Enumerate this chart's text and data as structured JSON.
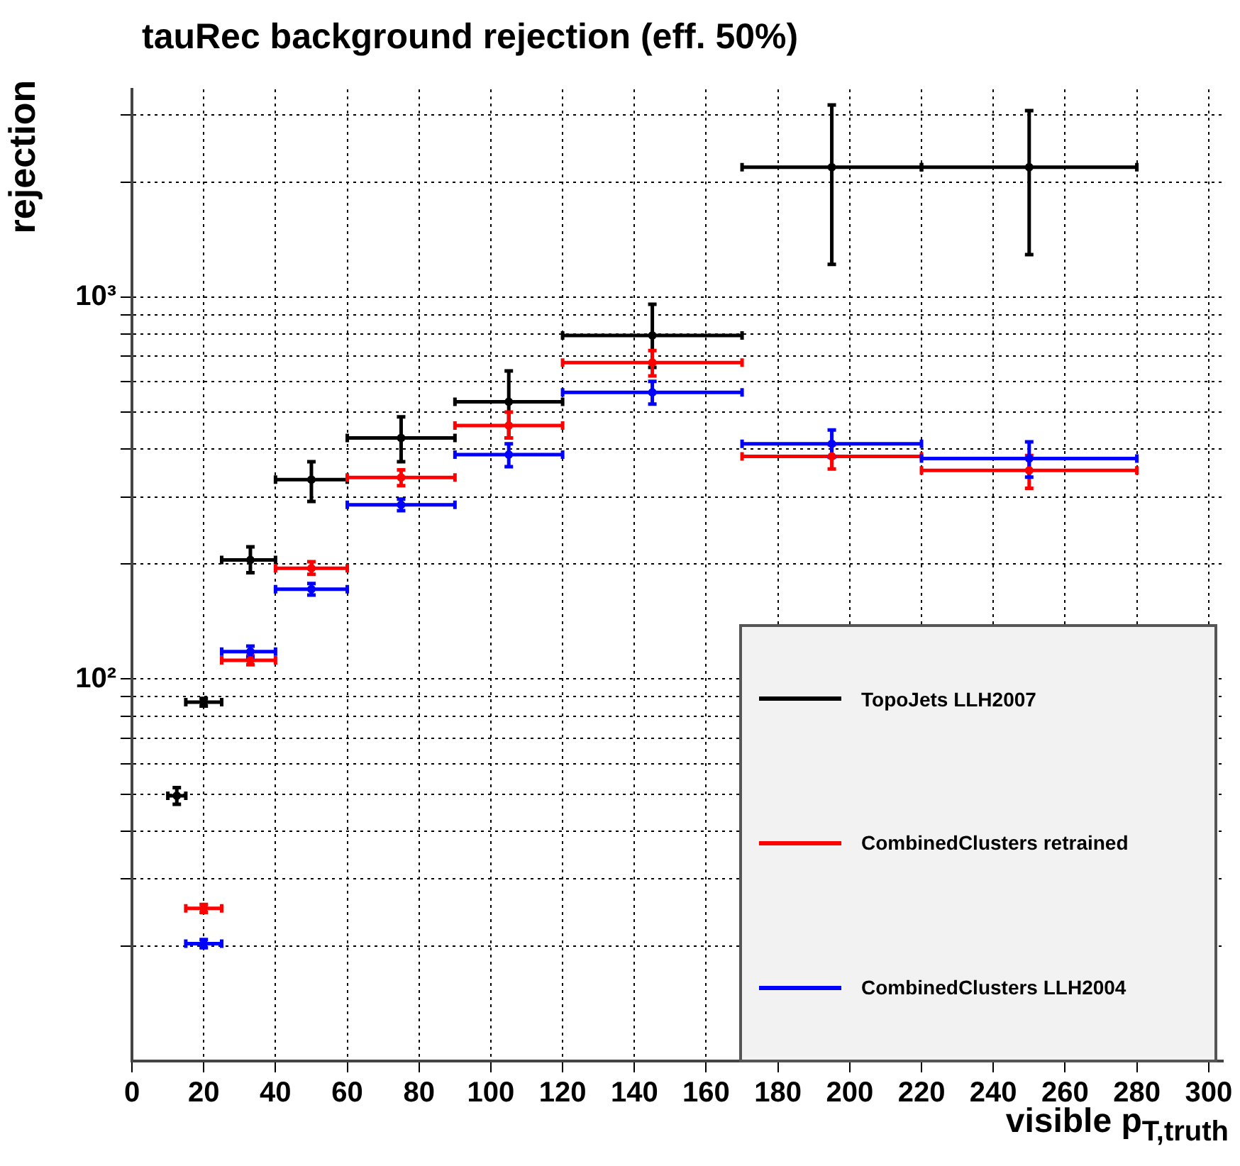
{
  "chart_data": {
    "type": "scatter",
    "title": "tauRec background rejection (eff. 50%)",
    "xlabel": "visible p$_{T,truth}$",
    "ylabel": "rejection",
    "log": "y",
    "grid": true,
    "legend": "bottom right",
    "marker": "circle",
    "xlim": [
      0,
      304
    ],
    "xticks": [
      0,
      20,
      40,
      60,
      80,
      100,
      120,
      140,
      160,
      180,
      200,
      220,
      240,
      260,
      280,
      300
    ],
    "ylim": [
      10,
      3500
    ],
    "yticks": [
      {
        "value": 20,
        "label": null
      },
      {
        "value": 30,
        "label": null
      },
      {
        "value": 40,
        "label": null
      },
      {
        "value": 50,
        "label": null
      },
      {
        "value": 60,
        "label": null
      },
      {
        "value": 70,
        "label": null
      },
      {
        "value": 80,
        "label": null
      },
      {
        "value": 90,
        "label": null
      },
      {
        "value": 100,
        "label": "10²"
      },
      {
        "value": 200,
        "label": null
      },
      {
        "value": 300,
        "label": null
      },
      {
        "value": 400,
        "label": null
      },
      {
        "value": 500,
        "label": null
      },
      {
        "value": 600,
        "label": null
      },
      {
        "value": 700,
        "label": null
      },
      {
        "value": 800,
        "label": null
      },
      {
        "value": 900,
        "label": null
      },
      {
        "value": 1000,
        "label": "10³"
      },
      {
        "value": 2000,
        "label": null
      },
      {
        "value": 3000,
        "label": null
      }
    ],
    "series": [
      {
        "name": "TopoJets LLH2007",
        "color": "#000000",
        "x": [
          12.5,
          20,
          33,
          50,
          75,
          105,
          145,
          195,
          250
        ],
        "values": [
          49.5,
          87,
          205,
          333,
          428,
          532,
          794,
          2190,
          2190
        ],
        "xerrors": [
          [
            10,
            15
          ],
          [
            15,
            25
          ],
          [
            25,
            40
          ],
          [
            40,
            60
          ],
          [
            60,
            90
          ],
          [
            90,
            120
          ],
          [
            120,
            170
          ],
          [
            170,
            220
          ],
          [
            220,
            280
          ]
        ],
        "errors": [
          [
            47,
            52
          ],
          [
            85,
            89
          ],
          [
            190,
            222
          ],
          [
            292,
            371
          ],
          [
            371,
            486
          ],
          [
            428,
            641
          ],
          [
            655,
            958
          ],
          [
            1218,
            3187
          ],
          [
            1293,
            3077
          ]
        ]
      },
      {
        "name": "CombinedClusters retrained",
        "color": "#ff0000",
        "x": [
          20,
          33,
          50,
          75,
          105,
          145,
          195,
          250
        ],
        "values": [
          25.1,
          112,
          195,
          337,
          461,
          674,
          383,
          352
        ],
        "xerrors": [
          [
            15,
            25
          ],
          [
            25,
            40
          ],
          [
            40,
            60
          ],
          [
            60,
            90
          ],
          [
            90,
            120
          ],
          [
            120,
            170
          ],
          [
            170,
            220
          ],
          [
            220,
            280
          ]
        ],
        "errors": [
          [
            24.5,
            25.7
          ],
          [
            109,
            115
          ],
          [
            188,
            203
          ],
          [
            321,
            353
          ],
          [
            428,
            500
          ],
          [
            622,
            725
          ],
          [
            355,
            411
          ],
          [
            316,
            385
          ]
        ]
      },
      {
        "name": "CombinedClusters LLH2004",
        "color": "#0000ff",
        "x": [
          20,
          33,
          50,
          75,
          105,
          145,
          195,
          250
        ],
        "values": [
          20.3,
          118,
          172,
          286,
          387,
          563,
          413,
          378
        ],
        "xerrors": [
          [
            15,
            25
          ],
          [
            25,
            40
          ],
          [
            40,
            60
          ],
          [
            60,
            90
          ],
          [
            90,
            120
          ],
          [
            120,
            170
          ],
          [
            170,
            220
          ],
          [
            220,
            280
          ]
        ],
        "errors": [
          [
            19.8,
            20.8
          ],
          [
            114,
            122
          ],
          [
            166,
            178
          ],
          [
            276,
            296
          ],
          [
            360,
            413
          ],
          [
            525,
            602
          ],
          [
            381,
            449
          ],
          [
            338,
            418
          ]
        ]
      }
    ]
  }
}
